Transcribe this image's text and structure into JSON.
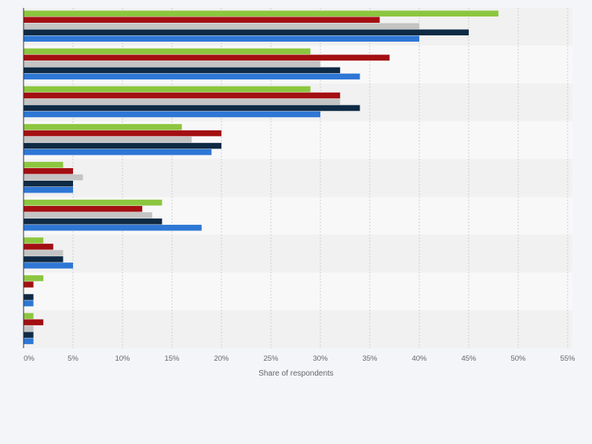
{
  "chart_data": {
    "type": "bar",
    "orientation": "horizontal",
    "categories": [
      "",
      "",
      "",
      "",
      "",
      "",
      "",
      "",
      ""
    ],
    "series": [
      {
        "color": "#8cc63f",
        "values": [
          48,
          29,
          29,
          16,
          4,
          14,
          2,
          2,
          1
        ]
      },
      {
        "color": "#a30f12",
        "values": [
          36,
          37,
          32,
          20,
          5,
          12,
          3,
          1,
          2
        ]
      },
      {
        "color": "#c4c4c4",
        "values": [
          40,
          30,
          32,
          17,
          6,
          13,
          4,
          0,
          1
        ]
      },
      {
        "color": "#0f2a44",
        "values": [
          45,
          32,
          34,
          20,
          5,
          14,
          4,
          1,
          1
        ]
      },
      {
        "color": "#2e77d5",
        "values": [
          40,
          34,
          30,
          19,
          5,
          18,
          5,
          1,
          1
        ]
      }
    ],
    "x_ticks": [
      "0%",
      "5%",
      "10%",
      "15%",
      "20%",
      "25%",
      "30%",
      "35%",
      "40%",
      "45%",
      "50%",
      "55%"
    ],
    "xlim": [
      0,
      55
    ],
    "xlabel": "Share of respondents",
    "grid": "vertical dashed",
    "legend": "none"
  }
}
